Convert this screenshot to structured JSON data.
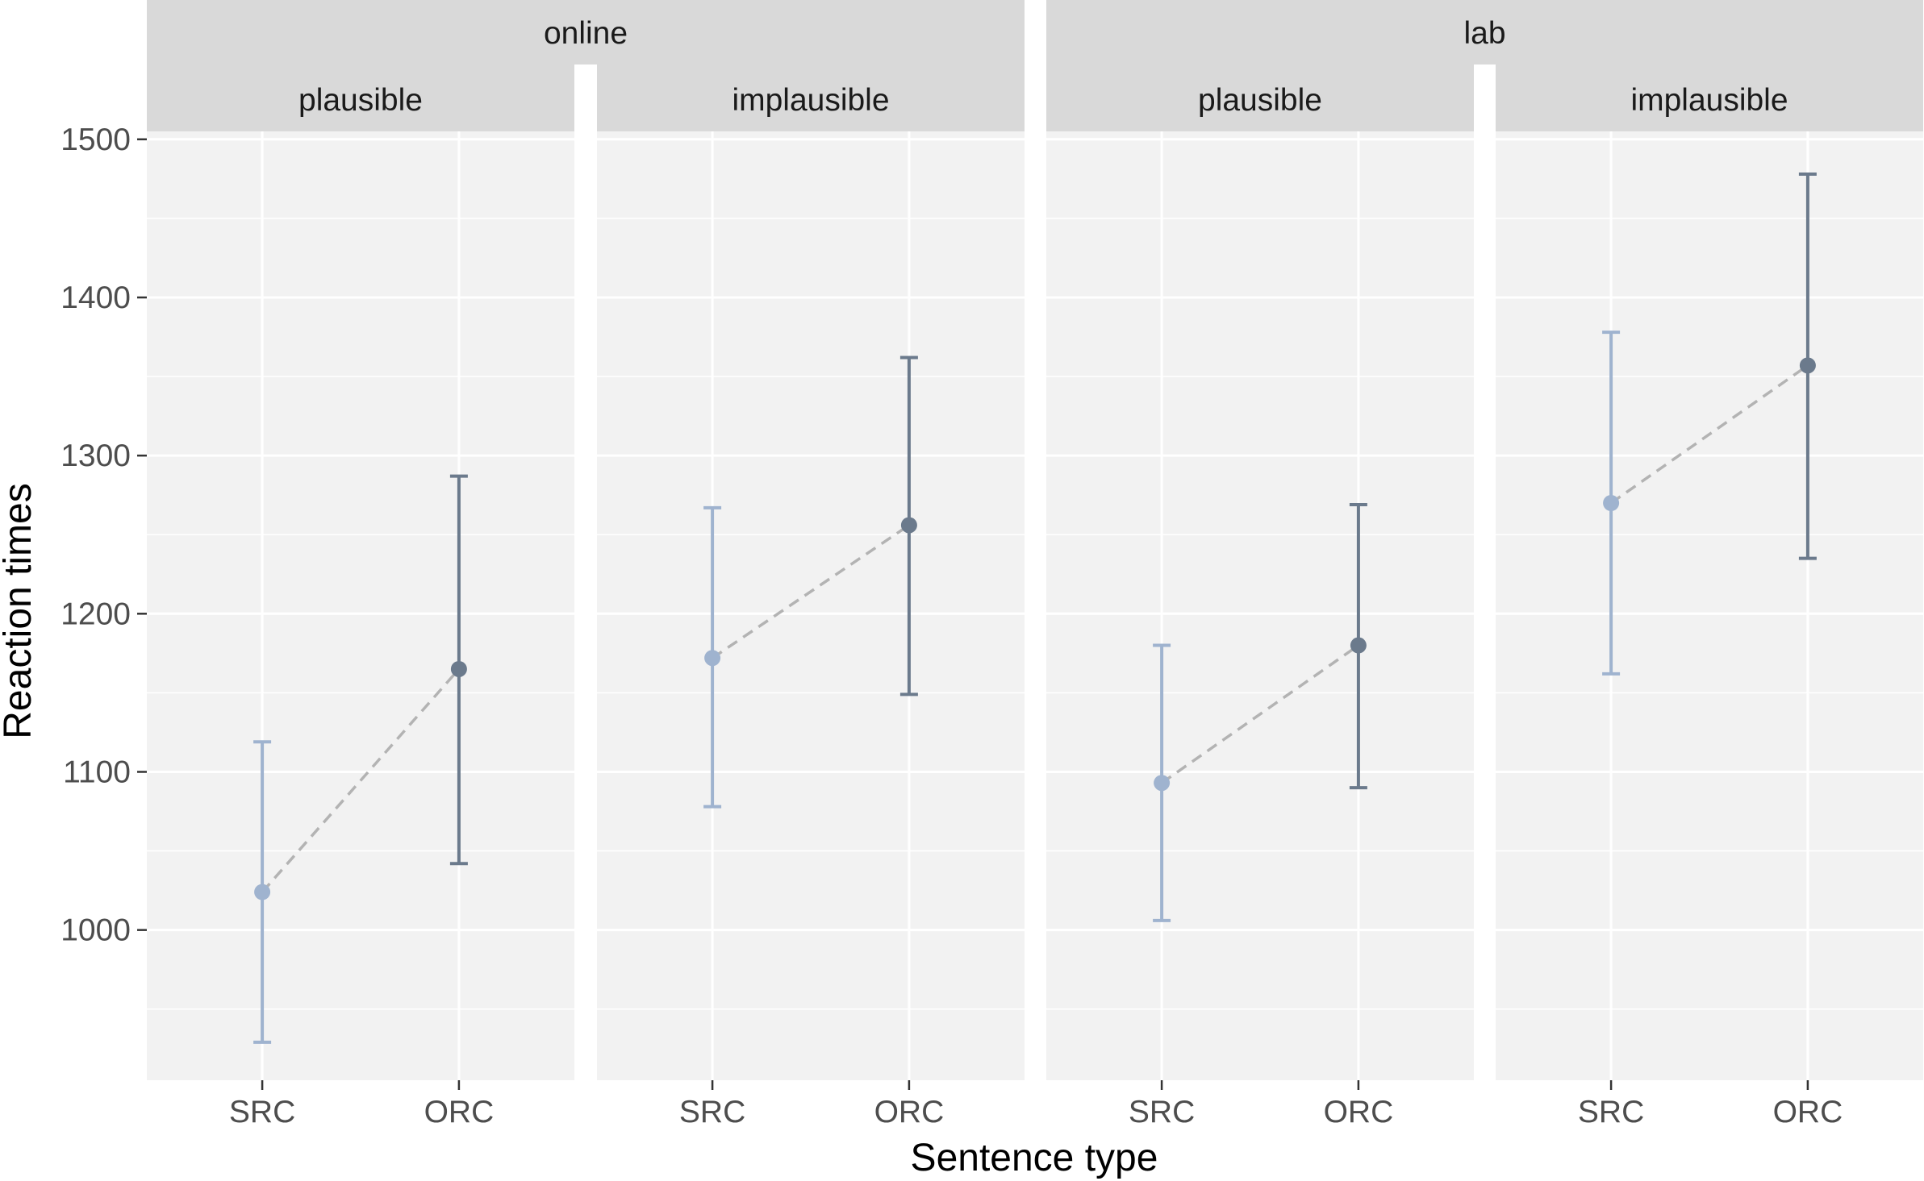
{
  "chart_data": {
    "type": "scatter",
    "title": "",
    "xlabel": "Sentence type",
    "ylabel": "Reaction times",
    "categories": [
      "SRC",
      "ORC"
    ],
    "ylim": [
      905,
      1505
    ],
    "yticks": [
      1000,
      1100,
      1200,
      1300,
      1400,
      1500
    ],
    "grid": true,
    "legend": "none",
    "colors": {
      "SRC": "#9fb3cf",
      "ORC": "#6b7a8c",
      "line": "#b3b3b3",
      "panel": "#f2f2f2",
      "strip": "#d9d9d9"
    },
    "groups": [
      {
        "label": "online",
        "panels": [
          {
            "label": "plausible",
            "points": [
              {
                "x": "SRC",
                "y": 1024,
                "lower": 929,
                "upper": 1119
              },
              {
                "x": "ORC",
                "y": 1165,
                "lower": 1042,
                "upper": 1287
              }
            ]
          },
          {
            "label": "implausible",
            "points": [
              {
                "x": "SRC",
                "y": 1172,
                "lower": 1078,
                "upper": 1267
              },
              {
                "x": "ORC",
                "y": 1256,
                "lower": 1149,
                "upper": 1362
              }
            ]
          }
        ]
      },
      {
        "label": "lab",
        "panels": [
          {
            "label": "plausible",
            "points": [
              {
                "x": "SRC",
                "y": 1093,
                "lower": 1006,
                "upper": 1180
              },
              {
                "x": "ORC",
                "y": 1180,
                "lower": 1090,
                "upper": 1269
              }
            ]
          },
          {
            "label": "implausible",
            "points": [
              {
                "x": "SRC",
                "y": 1270,
                "lower": 1162,
                "upper": 1378
              },
              {
                "x": "ORC",
                "y": 1357,
                "lower": 1235,
                "upper": 1478
              }
            ]
          }
        ]
      }
    ]
  }
}
